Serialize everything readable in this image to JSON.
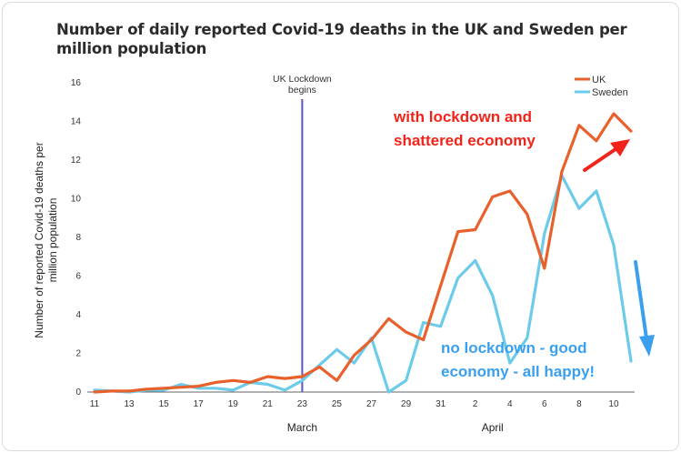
{
  "title": "Number of daily reported Covid-19 deaths in the UK and Sweden per million population",
  "annotations": {
    "red": [
      "with lockdown and",
      "shattered economy"
    ],
    "blue": [
      "no lockdown - good",
      "economy - all happy!"
    ]
  },
  "colors": {
    "uk": "#e8612c",
    "sweden": "#6dcbea",
    "lockdown_line": "#5a54c8",
    "annotation_red": "#f0241a",
    "annotation_blue": "#3aa0ee"
  },
  "chart_data": {
    "type": "line",
    "title": "Number of daily reported Covid-19 deaths in the UK and Sweden per million population",
    "xlabel": "",
    "ylabel": "Number of reported Covid-19 deaths per million population",
    "x": [
      11,
      12,
      13,
      14,
      15,
      16,
      17,
      18,
      19,
      20,
      21,
      22,
      23,
      24,
      25,
      26,
      27,
      28,
      29,
      30,
      31,
      1,
      2,
      3,
      4,
      5,
      6,
      7,
      8,
      9,
      10,
      11
    ],
    "x_tick_labels": [
      "11",
      "13",
      "15",
      "17",
      "19",
      "21",
      "23",
      "25",
      "27",
      "29",
      "31",
      "2",
      "4",
      "6",
      "8",
      "10"
    ],
    "month_labels": [
      "March",
      "April"
    ],
    "ylim": [
      0,
      16
    ],
    "y_ticks": [
      0,
      2,
      4,
      6,
      8,
      10,
      12,
      14,
      16
    ],
    "grid": false,
    "legend_position": "top-right",
    "series": [
      {
        "name": "UK",
        "values": [
          0.0,
          0.05,
          0.05,
          0.15,
          0.2,
          0.25,
          0.3,
          0.5,
          0.6,
          0.5,
          0.8,
          0.7,
          0.8,
          1.3,
          0.6,
          1.9,
          2.7,
          3.8,
          3.1,
          2.7,
          5.5,
          8.3,
          8.4,
          10.1,
          10.4,
          9.2,
          6.4,
          11.4,
          13.8,
          13.0,
          14.4,
          13.5
        ]
      },
      {
        "name": "Sweden",
        "values": [
          0.1,
          0.05,
          0.0,
          0.1,
          0.1,
          0.4,
          0.2,
          0.2,
          0.1,
          0.5,
          0.4,
          0.1,
          0.6,
          1.4,
          2.2,
          1.5,
          2.8,
          0.0,
          0.6,
          3.6,
          3.4,
          5.9,
          6.8,
          5.0,
          1.5,
          2.8,
          8.2,
          11.2,
          9.5,
          10.4,
          7.6,
          1.6
        ]
      }
    ],
    "annotations": [
      {
        "text": "UK Lockdown begins",
        "x": 23
      }
    ]
  }
}
